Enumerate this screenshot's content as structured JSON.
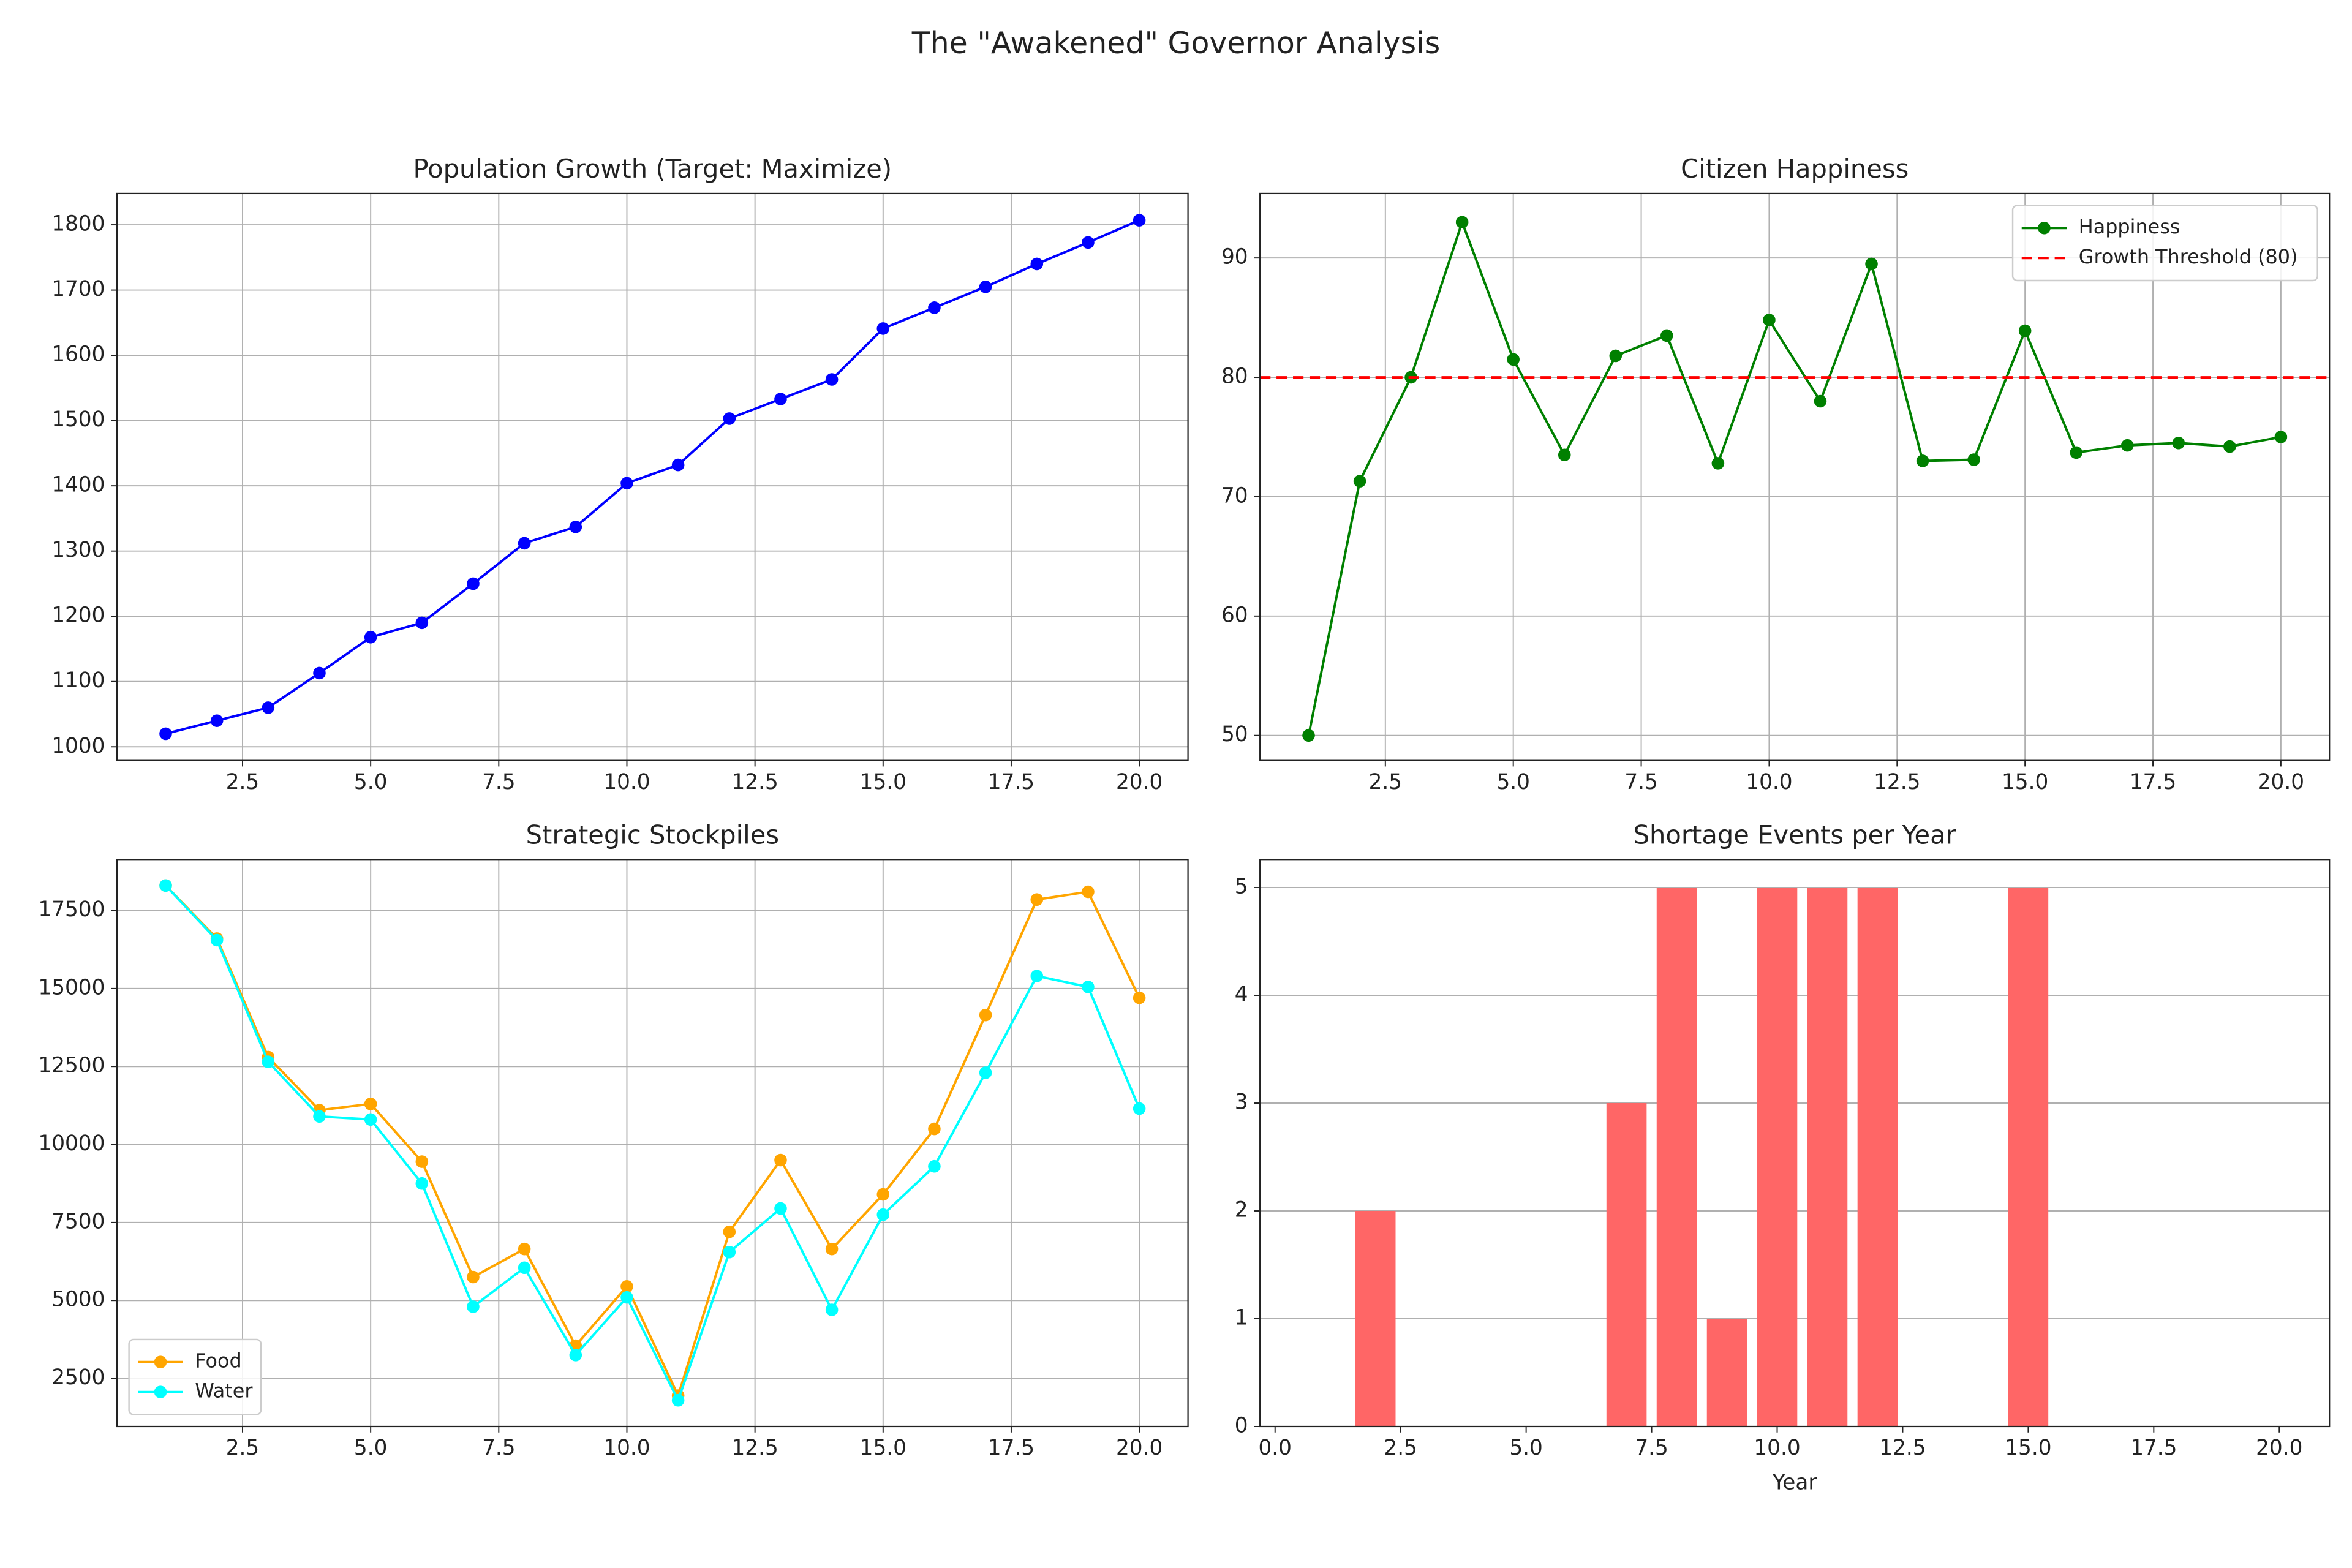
{
  "title": "The \"Awakened\" Governor Analysis",
  "chart_data": [
    {
      "type": "line",
      "title": "Population Growth (Target: Maximize)",
      "x": [
        1,
        2,
        3,
        4,
        5,
        6,
        7,
        8,
        9,
        10,
        11,
        12,
        13,
        14,
        15,
        16,
        17,
        18,
        19,
        20
      ],
      "values": [
        1020,
        1040,
        1060,
        1113,
        1168,
        1190,
        1250,
        1312,
        1337,
        1404,
        1432,
        1503,
        1533,
        1563,
        1641,
        1673,
        1705,
        1740,
        1773,
        1807
      ],
      "color": "#0000ff",
      "xlim": [
        0.05,
        20.95
      ],
      "xticks": [
        2.5,
        {
          "value": 5,
          "label": "5.0"
        },
        7.5,
        {
          "value": 10,
          "label": "10.0"
        },
        12.5,
        {
          "value": 15,
          "label": "15.0"
        },
        17.5,
        {
          "value": 20,
          "label": "20.0"
        }
      ],
      "ylim": [
        979,
        1848
      ],
      "yticks": [
        1000,
        1100,
        1200,
        1300,
        1400,
        1500,
        1600,
        1700,
        1800
      ],
      "grid": true
    },
    {
      "type": "line",
      "title": "Citizen Happiness",
      "x": [
        1,
        2,
        3,
        4,
        5,
        6,
        7,
        8,
        9,
        10,
        11,
        12,
        13,
        14,
        15,
        16,
        17,
        18,
        19,
        20
      ],
      "series": [
        {
          "name": "Happiness",
          "color": "#008000",
          "values": [
            50,
            71.3,
            80,
            93,
            81.5,
            73.5,
            81.8,
            83.5,
            72.8,
            84.8,
            78,
            89.5,
            73,
            73.1,
            83.9,
            73.7,
            74.3,
            74.5,
            74.2,
            75
          ]
        }
      ],
      "hlines": [
        {
          "name": "Growth Threshold (80)",
          "value": 80,
          "color": "#ff0000",
          "style": "dashed"
        }
      ],
      "xlim": [
        0.05,
        20.95
      ],
      "xticks": [
        2.5,
        {
          "value": 5,
          "label": "5.0"
        },
        7.5,
        {
          "value": 10,
          "label": "10.0"
        },
        12.5,
        {
          "value": 15,
          "label": "15.0"
        },
        17.5,
        {
          "value": 20,
          "label": "20.0"
        }
      ],
      "ylim": [
        47.9,
        95.4
      ],
      "yticks": [
        50,
        60,
        70,
        80,
        90
      ],
      "grid": true,
      "legend": "upper right"
    },
    {
      "type": "line",
      "title": "Strategic Stockpiles",
      "x": [
        1,
        2,
        3,
        4,
        5,
        6,
        7,
        8,
        9,
        10,
        11,
        12,
        13,
        14,
        15,
        16,
        17,
        18,
        19,
        20
      ],
      "series": [
        {
          "name": "Food",
          "color": "#ffa500",
          "values": [
            18300,
            16600,
            12800,
            11100,
            11300,
            9450,
            5750,
            6650,
            3550,
            5450,
            1950,
            7200,
            9500,
            6650,
            8400,
            10500,
            14150,
            17850,
            18100,
            14700
          ]
        },
        {
          "name": "Water",
          "color": "#00ffff",
          "values": [
            18300,
            16550,
            12650,
            10900,
            10800,
            8750,
            4800,
            6050,
            3250,
            5100,
            1800,
            6550,
            7950,
            4700,
            7750,
            9300,
            12300,
            15400,
            15050,
            11150
          ]
        }
      ],
      "xlim": [
        0.05,
        20.95
      ],
      "xticks": [
        2.5,
        {
          "value": 5,
          "label": "5.0"
        },
        7.5,
        {
          "value": 10,
          "label": "10.0"
        },
        12.5,
        {
          "value": 15,
          "label": "15.0"
        },
        17.5,
        {
          "value": 20,
          "label": "20.0"
        }
      ],
      "ylim": [
        960,
        19135
      ],
      "yticks": [
        2500,
        5000,
        7500,
        10000,
        12500,
        15000,
        17500
      ],
      "grid": true,
      "legend": "lower left"
    },
    {
      "type": "bar",
      "title": "Shortage Events per Year",
      "xlabel": "Year",
      "x": [
        1,
        2,
        3,
        4,
        5,
        6,
        7,
        8,
        9,
        10,
        11,
        12,
        13,
        14,
        15,
        16,
        17,
        18,
        19,
        20
      ],
      "values": [
        0,
        2,
        0,
        0,
        0,
        0,
        3,
        5,
        1,
        5,
        5,
        5,
        0,
        0,
        5,
        0,
        0,
        0,
        0,
        0
      ],
      "color": "#ff6666",
      "xlim": [
        -0.3,
        21.0
      ],
      "xticks": [
        {
          "value": 0,
          "label": "0.0"
        },
        2.5,
        {
          "value": 5,
          "label": "5.0"
        },
        7.5,
        {
          "value": 10,
          "label": "10.0"
        },
        12.5,
        {
          "value": 15,
          "label": "15.0"
        },
        17.5,
        {
          "value": 20,
          "label": "20.0"
        }
      ],
      "ylim": [
        0,
        5.26
      ],
      "yticks": [
        0,
        1,
        2,
        3,
        4,
        5
      ],
      "grid": "y"
    }
  ]
}
